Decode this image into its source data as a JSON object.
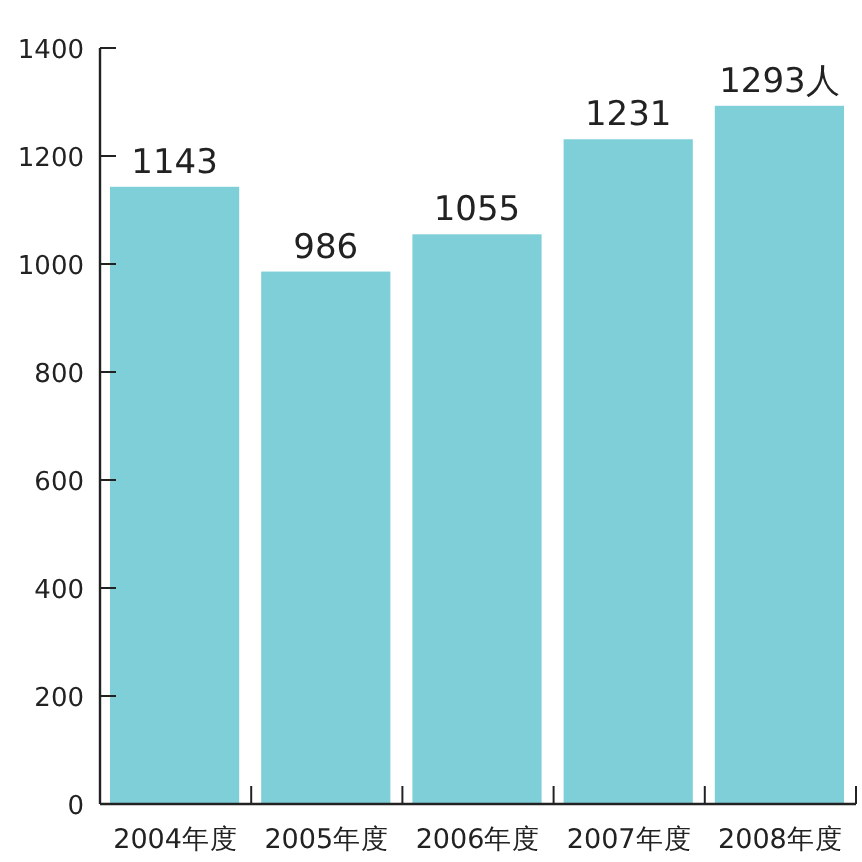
{
  "chart_data": {
    "type": "bar",
    "categories": [
      "2004年度",
      "2005年度",
      "2006年度",
      "2007年度",
      "2008年度"
    ],
    "values": [
      1143,
      986,
      1055,
      1231,
      1293
    ],
    "value_labels": [
      "1143",
      "986",
      "1055",
      "1231",
      "1293人"
    ],
    "color": "#7fcfd8",
    "ylim": [
      0,
      1400
    ],
    "yticks": [
      0,
      200,
      400,
      600,
      800,
      1000,
      1200,
      1400
    ],
    "grid": false
  }
}
